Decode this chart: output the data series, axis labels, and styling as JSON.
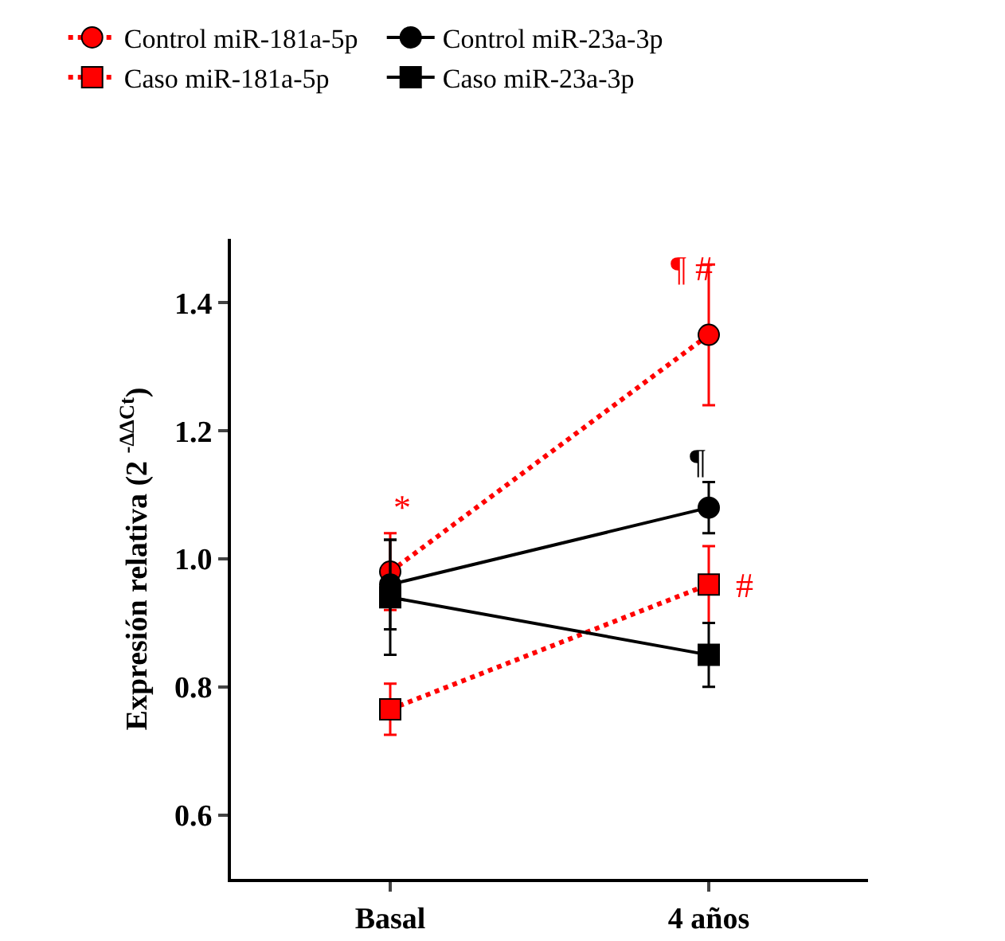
{
  "chart_data": {
    "type": "line",
    "ylabel": "Expresión relativa (2 $^{-ΔΔCt}$)",
    "categories": [
      "Basal",
      "4 años"
    ],
    "series": [
      {
        "name": "Control miR-181a-5p",
        "color": "#ff0000",
        "marker": "circle",
        "line_style": "dotted",
        "values": [
          0.98,
          1.35
        ],
        "errors": [
          0.06,
          0.11
        ]
      },
      {
        "name": "Control miR-23a-3p",
        "color": "#000000",
        "marker": "circle",
        "line_style": "solid",
        "values": [
          0.96,
          1.08
        ],
        "errors": [
          0.07,
          0.04
        ]
      },
      {
        "name": "Caso miR-181a-5p",
        "color": "#ff0000",
        "marker": "square",
        "line_style": "dotted",
        "values": [
          0.765,
          0.96
        ],
        "errors": [
          0.04,
          0.06
        ]
      },
      {
        "name": "Caso miR-23a-3p",
        "color": "#000000",
        "marker": "square",
        "line_style": "solid",
        "values": [
          0.94,
          0.85
        ],
        "errors": [
          0.09,
          0.05
        ]
      }
    ],
    "ylim": [
      0.5,
      1.5
    ],
    "yticks": [
      0.6,
      0.8,
      {
        "value": 1.0,
        "label": "1.0"
      },
      1.2,
      1.4
    ],
    "grid": false,
    "legend": "top",
    "annotations": [
      "*",
      "¶ #",
      "¶",
      {
        "text": "#",
        "x": "4 años",
        "y": 0.96
      }
    ]
  }
}
